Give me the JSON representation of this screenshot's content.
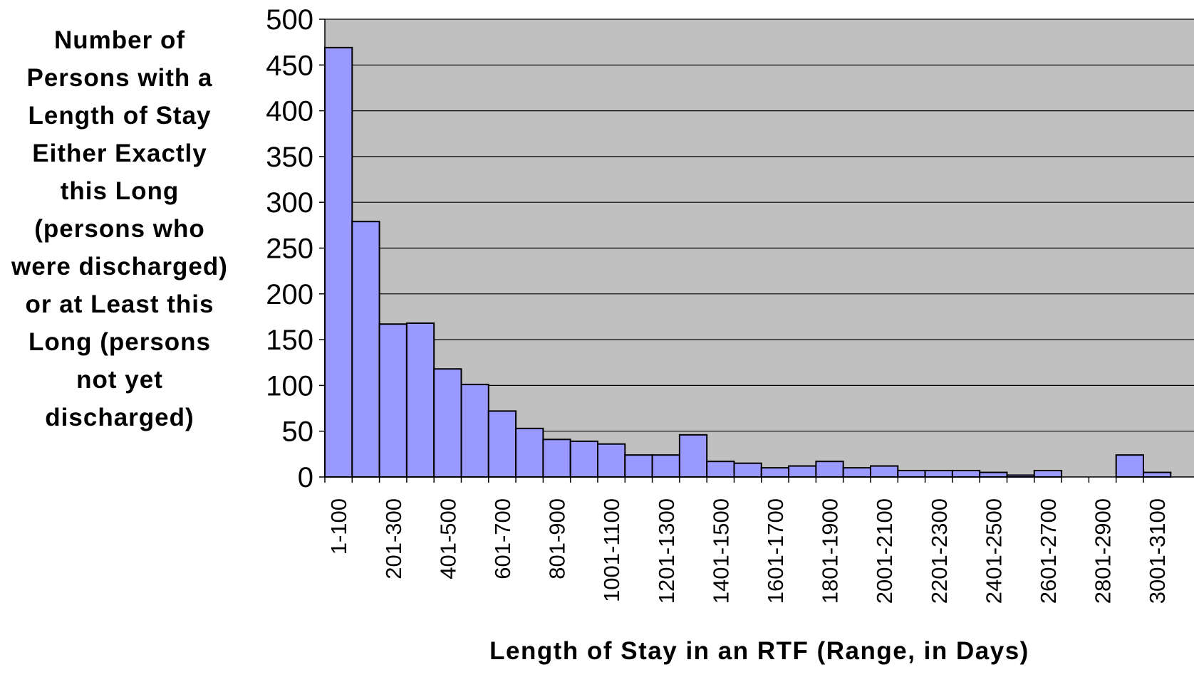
{
  "chart_data": {
    "type": "bar",
    "y_label": "Number of Persons with a Length of Stay Either Exactly this Long (persons who were discharged) or at Least this Long (persons not yet discharged)",
    "x_label": "Length of Stay in an RTF (Range, in Days)",
    "categories": [
      "1-100",
      null,
      "201-300",
      null,
      "401-500",
      null,
      "601-700",
      null,
      "801-900",
      null,
      "1001-1100",
      null,
      "1201-1300",
      null,
      "1401-1500",
      null,
      "1601-1700",
      null,
      "1801-1900",
      null,
      "2001-2100",
      null,
      "2201-2300",
      null,
      "2401-2500",
      null,
      "2601-2700",
      null,
      "2801-2900",
      null,
      "3001-3100"
    ],
    "values": [
      469,
      279,
      167,
      168,
      118,
      101,
      72,
      53,
      41,
      39,
      36,
      24,
      24,
      46,
      17,
      15,
      10,
      12,
      17,
      10,
      12,
      7,
      7,
      7,
      5,
      2,
      7,
      0,
      0,
      24,
      5
    ],
    "color": "#9999ff",
    "ylim": [
      0,
      500
    ],
    "yticks": [
      0,
      50,
      100,
      150,
      200,
      250,
      300,
      350,
      400,
      450,
      500
    ],
    "grid": true
  }
}
